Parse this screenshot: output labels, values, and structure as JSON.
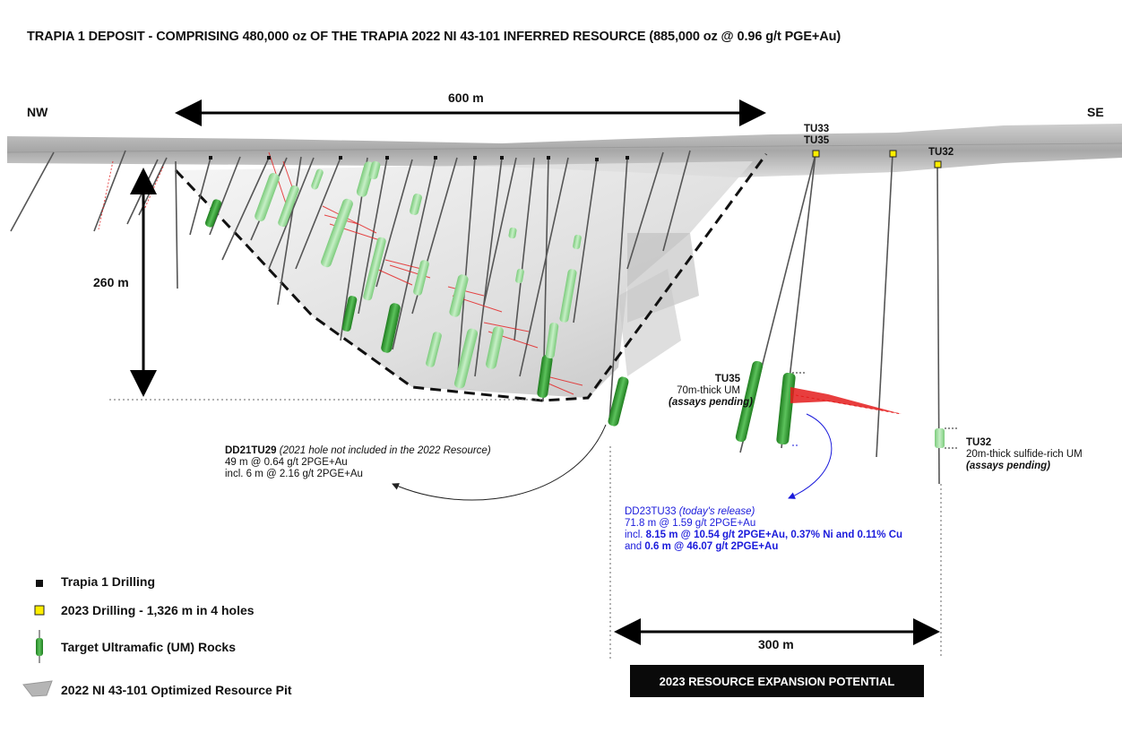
{
  "title": "TRAPIA 1 DEPOSIT - COMPRISING 480,000 oz OF THE TRAPIA 2022 NI 43-101 INFERRED RESOURCE (885,000 oz @ 0.96 g/t PGE+Au)",
  "directions": {
    "left": "NW",
    "right": "SE"
  },
  "dimensions": {
    "width_top": "600 m",
    "depth": "260 m",
    "expansion_width": "300 m"
  },
  "hole_labels": {
    "tu33_tu35_top": "TU33",
    "tu33_tu35_bottom": "TU35",
    "tu32": "TU32"
  },
  "tu35_annotation": {
    "hole": "TU35",
    "line1": "70m-thick UM",
    "line2": "(assays pending)"
  },
  "tu32_annotation": {
    "hole": "TU32",
    "line1": "20m-thick sulfide-rich UM",
    "line2": "(assays pending)"
  },
  "dd21tu29_annotation": {
    "hole": "DD21TU29",
    "note": "(2021 hole not included in the 2022 Resource)",
    "line1": "49 m @ 0.64 g/t 2PGE+Au",
    "line2": "incl. 6 m @ 2.16 g/t 2PGE+Au"
  },
  "dd23tu33_annotation": {
    "hole": "DD23TU33",
    "note": "(today's release)",
    "line1": "71.8 m @ 1.59 g/t 2PGE+Au",
    "line2_prefix": "incl.",
    "line2_bold": "8.15 m @ 10.54 g/t 2PGE+Au, 0.37% Ni and 0.11% Cu",
    "line3_prefix": "and",
    "line3_bold": "0.6 m @ 46.07 g/t 2PGE+Au"
  },
  "expansion_label": "2023 RESOURCE EXPANSION POTENTIAL",
  "legend": [
    {
      "label": "Trapia 1 Drilling",
      "symbol": "black-square-icon"
    },
    {
      "label": "2023 Drilling - 1,326 m in 4 holes",
      "symbol": "yellow-square-icon"
    },
    {
      "label": "Target Ultramafic (UM) Rocks",
      "symbol": "green-core-icon"
    },
    {
      "label": "2022 NI 43-101 Optimized Resource Pit",
      "symbol": "grey-pit-icon"
    }
  ],
  "colors": {
    "um_green": "#2e9a2e",
    "um_light": "#8fd68f",
    "assay_red": "#e41c1c",
    "annotation_blue": "#1a1adb",
    "collar_yellow": "#ffee00",
    "pit_grey": "#cfcfcf"
  }
}
